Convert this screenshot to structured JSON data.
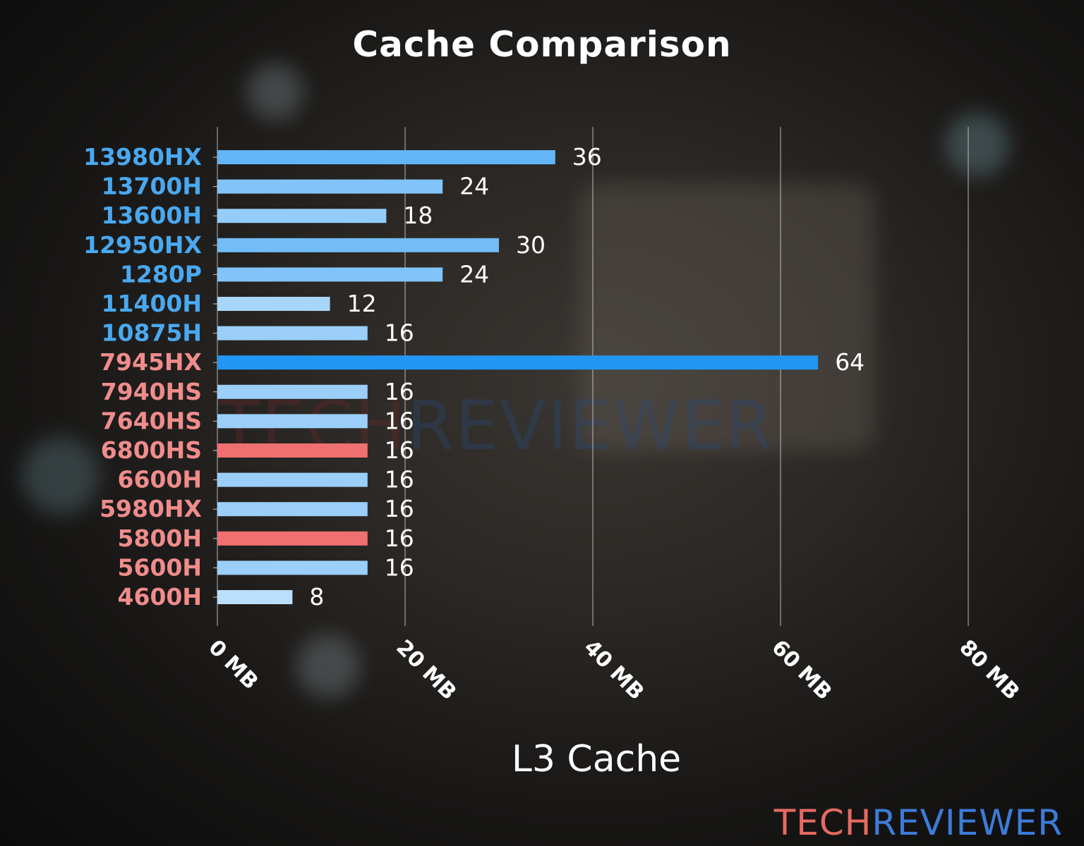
{
  "chart_data": {
    "type": "bar",
    "orientation": "horizontal",
    "title": "Cache Comparison",
    "xlabel": "L3 Cache",
    "ylabel": "",
    "xlim": [
      0,
      80
    ],
    "xticks": [
      0,
      20,
      40,
      60,
      80
    ],
    "xtick_labels": [
      "0 MB",
      "20 MB",
      "40 MB",
      "60 MB",
      "80 MB"
    ],
    "grid": "vertical",
    "categories": [
      "13980HX",
      "13700H",
      "13600H",
      "12950HX",
      "1280P",
      "11400H",
      "10875H",
      "7945HX",
      "7940HS",
      "7640HS",
      "6800HS",
      "6600H",
      "5980HX",
      "5800H",
      "5600H",
      "4600H"
    ],
    "values": [
      36,
      24,
      18,
      30,
      24,
      12,
      16,
      64,
      16,
      16,
      16,
      16,
      16,
      16,
      16,
      8
    ],
    "label_colors": [
      "#4aa8f0",
      "#4aa8f0",
      "#4aa8f0",
      "#4aa8f0",
      "#4aa8f0",
      "#4aa8f0",
      "#4aa8f0",
      "#f08c8c",
      "#f08c8c",
      "#f08c8c",
      "#f08c8c",
      "#f08c8c",
      "#f08c8c",
      "#f08c8c",
      "#f08c8c",
      "#f08c8c"
    ],
    "highlight_bars": [
      "6800HS",
      "5800H"
    ],
    "highlight_color": "#f07070",
    "bar_color_scale": [
      "#bbdefb",
      "#2196f3"
    ]
  },
  "watermark": {
    "part1": "TECH",
    "part2": "REVIEWER"
  },
  "logo": {
    "part1": "TECH",
    "part2": "REVIEWER"
  }
}
